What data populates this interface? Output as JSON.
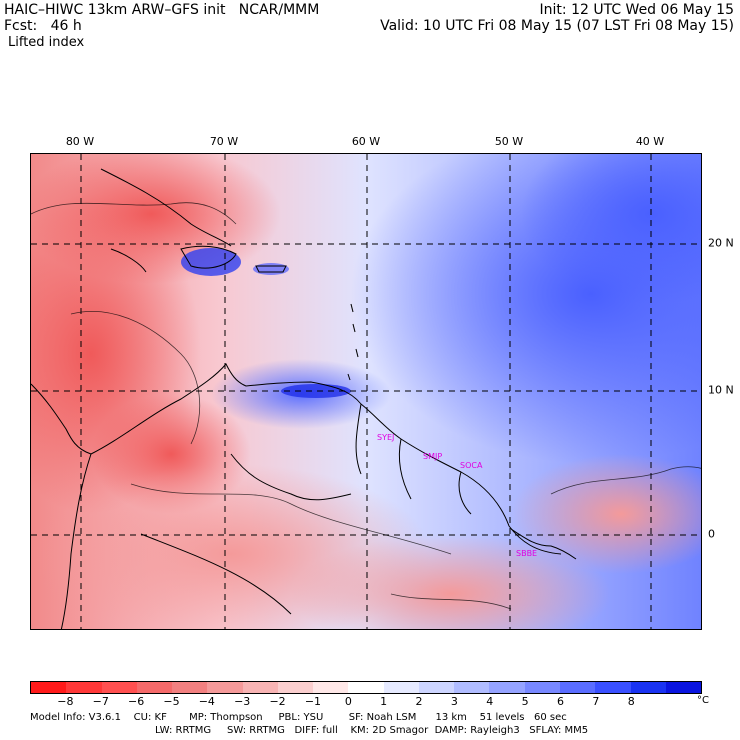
{
  "header": {
    "left_line1": "HAIC–HIWC 13km ARW–GFS init   NCAR/MMM",
    "left_line2": "Fcst:   46 h",
    "field_name": "Lifted index",
    "right_line1": "Init: 12 UTC Wed 06 May 15",
    "right_line2": "Valid: 10 UTC Fri 08 May 15 (07 LST Fri 08 May 15)"
  },
  "map": {
    "longitude_labels": [
      "80 W",
      "70 W",
      "60 W",
      "50 W",
      "40 W"
    ],
    "latitude_labels": [
      "20 N",
      "10 N",
      "0"
    ],
    "stations": [
      "SYEJ",
      "SMJP",
      "SOCA",
      "SBBE"
    ]
  },
  "colorbar": {
    "tick_labels": [
      "−8",
      "−7",
      "−6",
      "−5",
      "−4",
      "−3",
      "−2",
      "−1",
      "0",
      "1",
      "2",
      "3",
      "4",
      "5",
      "6",
      "7",
      "8"
    ],
    "unit": "°C",
    "colors": [
      "#ff1a1a",
      "#ff3838",
      "#ff5050",
      "#f56a6a",
      "#f28080",
      "#f59a9a",
      "#f8b4b4",
      "#fbcfcf",
      "#ffe8e8",
      "#ffffff",
      "#e6eaff",
      "#cdd5ff",
      "#b0bcff",
      "#95a3ff",
      "#7888ff",
      "#5a6dff",
      "#3a50ff",
      "#1a33f2",
      "#0a14e0"
    ]
  },
  "footer": {
    "line1": "Model Info: V3.6.1    CU: KF       MP: Thompson     PBL: YSU        SF: Noah LSM      13 km    51 levels   60 sec",
    "line2": "LW: RRTMG     SW: RRTMG   DIFF: full    KM: 2D Smagor  DAMP: Rayleigh3   SFLAY: MM5"
  }
}
